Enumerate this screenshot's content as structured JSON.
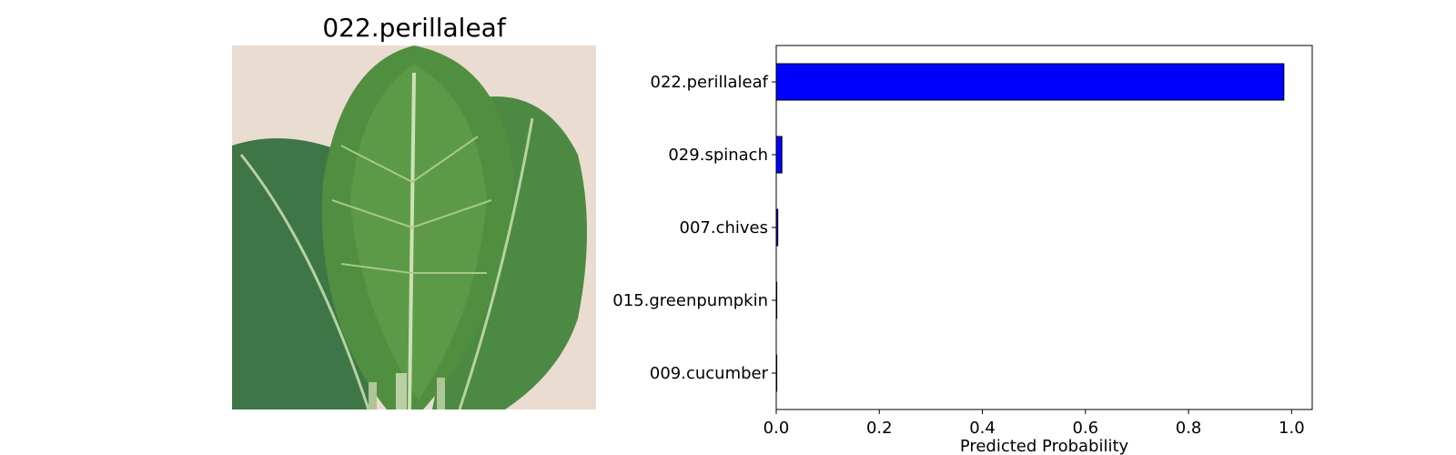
{
  "image_panel": {
    "title": "022.perillaleaf",
    "photo_icon": "perilla-leaf-photo",
    "colors": {
      "background": "#eadcd0",
      "leaf_dark": "#3f7a3a",
      "leaf_light": "#5f9a4a",
      "vein": "#c9dcb0"
    }
  },
  "chart_data": {
    "type": "bar",
    "orientation": "horizontal",
    "categories": [
      "022.perillaleaf",
      "029.spinach",
      "007.chives",
      "015.greenpumpkin",
      "009.cucumber"
    ],
    "values": [
      0.985,
      0.011,
      0.003,
      0.001,
      0.0005
    ],
    "xlabel": "Predicted Probability",
    "ylabel": "",
    "xlim": [
      0,
      1.04
    ],
    "xticks": [
      "0.0",
      "0.2",
      "0.4",
      "0.6",
      "0.8",
      "1.0"
    ],
    "grid": false,
    "bar_color": "#0000ff",
    "bar_edge_color": "#000000"
  }
}
